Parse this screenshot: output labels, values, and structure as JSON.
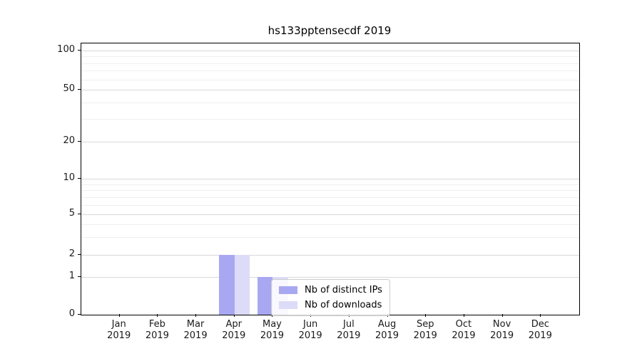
{
  "chart_data": {
    "type": "bar",
    "title": "hs133pptensecdf 2019",
    "categories": [
      "Jan 2019",
      "Feb 2019",
      "Mar 2019",
      "Apr 2019",
      "May 2019",
      "Jun 2019",
      "Jul 2019",
      "Aug 2019",
      "Sep 2019",
      "Oct 2019",
      "Nov 2019",
      "Dec 2019"
    ],
    "series": [
      {
        "name": "Nb of distinct IPs",
        "color": "#a8a8f2",
        "values": [
          0,
          0,
          0,
          2,
          1,
          0,
          0,
          0,
          0,
          0,
          0,
          0
        ]
      },
      {
        "name": "Nb of downloads",
        "color": "#dcdcf8",
        "values": [
          0,
          0,
          0,
          2,
          1,
          0,
          0,
          0,
          0,
          0,
          0,
          0
        ]
      }
    ],
    "yscale": "symlog",
    "yticks": [
      0,
      1,
      2,
      5,
      10,
      20,
      50,
      100
    ],
    "y_minor_gridlines": [
      3,
      4,
      6,
      7,
      8,
      9,
      30,
      40,
      60,
      70,
      80,
      90
    ],
    "ylim": [
      0,
      110
    ],
    "grid": true,
    "legend_position": "lower center-right inside plot",
    "colors": {
      "major_grid": "#d9d9d9",
      "minor_grid": "#efefef",
      "spine": "#000000",
      "text": "#1a1a1a",
      "background": "#ffffff"
    }
  }
}
